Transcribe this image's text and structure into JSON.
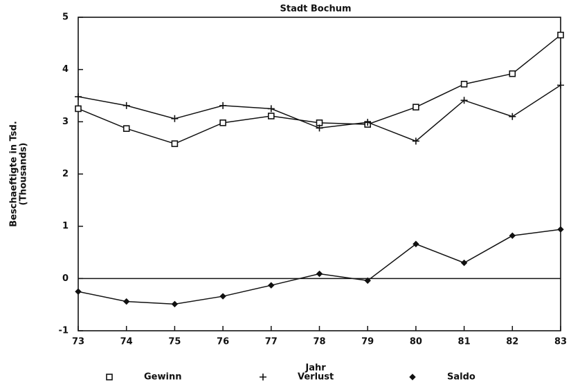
{
  "chart_data": {
    "type": "line",
    "title": "Stadt Bochum",
    "ylabel": [
      "Beschaeftigte in Tsd.",
      "(Thousands)"
    ],
    "xlabel": "Jahr",
    "x": [
      73,
      74,
      75,
      76,
      77,
      78,
      79,
      80,
      81,
      82,
      83
    ],
    "xlim": [
      73,
      83
    ],
    "xticks": [
      73,
      74,
      75,
      76,
      77,
      78,
      79,
      80,
      81,
      82,
      83
    ],
    "ylim": [
      -1,
      5
    ],
    "yticks": [
      -1,
      0,
      1,
      2,
      3,
      4,
      5
    ],
    "zero_line": true,
    "series": [
      {
        "name": "Gewinn",
        "color": "#111111",
        "marker": "square",
        "values": [
          3.25,
          2.87,
          2.58,
          2.98,
          3.11,
          2.98,
          2.95,
          3.28,
          3.72,
          3.92,
          4.66
        ]
      },
      {
        "name": "Verlust",
        "color": "#111111",
        "marker": "plus",
        "values": [
          3.48,
          3.31,
          3.06,
          3.31,
          3.25,
          2.88,
          2.99,
          2.63,
          3.41,
          3.1,
          3.7
        ]
      },
      {
        "name": "Saldo",
        "color": "#111111",
        "marker": "diamond",
        "values": [
          -0.25,
          -0.44,
          -0.49,
          -0.34,
          -0.13,
          0.09,
          -0.04,
          0.66,
          0.3,
          0.82,
          0.94
        ]
      }
    ]
  }
}
